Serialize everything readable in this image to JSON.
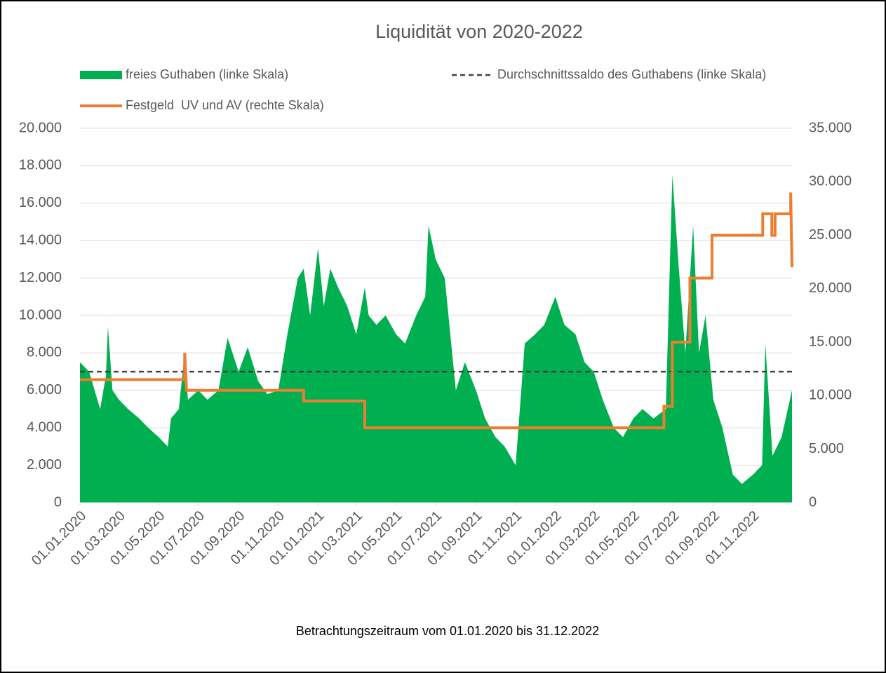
{
  "chart_data": {
    "type": "area-line",
    "title": "Liquidität von 2020-2022",
    "x_axis_label": "Betrachtungszeitraum vom 01.01.2020 bis 31.12.2022",
    "xlim": [
      "01.01.2020",
      "31.12.2022"
    ],
    "xticks": [
      "01.01.2020",
      "01.03.2020",
      "01.05.2020",
      "01.07.2020",
      "01.09.2020",
      "01.11.2020",
      "01.01.2021",
      "01.03.2021",
      "01.05.2021",
      "01.07.2021",
      "01.09.2021",
      "01.11.2021",
      "01.01.2022",
      "01.03.2022",
      "01.05.2022",
      "01.07.2022",
      "01.09.2022",
      "01.11.2022"
    ],
    "ylim": [
      0,
      20000
    ],
    "yticks": [
      0,
      {
        "value": 2000,
        "label": "2.000"
      },
      {
        "value": 4000,
        "label": "4.000"
      },
      {
        "value": 6000,
        "label": "6.000"
      },
      {
        "value": 8000,
        "label": "8.000"
      },
      {
        "value": 10000,
        "label": "10.000"
      },
      {
        "value": 12000,
        "label": "12.000"
      },
      {
        "value": 14000,
        "label": "14.000"
      },
      {
        "value": 16000,
        "label": "16.000"
      },
      {
        "value": 18000,
        "label": "18.000"
      },
      {
        "value": 20000,
        "label": "20.000"
      }
    ],
    "y2lim": [
      0,
      35000
    ],
    "y2ticks": [
      0,
      {
        "value": 5000,
        "label": "5.000"
      },
      {
        "value": 10000,
        "label": "10.000"
      },
      {
        "value": 15000,
        "label": "15.000"
      },
      {
        "value": 20000,
        "label": "20.000"
      },
      {
        "value": 25000,
        "label": "25.000"
      },
      {
        "value": 30000,
        "label": "30.000"
      },
      {
        "value": 35000,
        "label": "35.000"
      }
    ],
    "grid": true,
    "series": [
      {
        "name": "freies Guthaben (linke Skala)",
        "kind": "area",
        "color": "#00b050",
        "x": [
          "01.01.2020",
          "15.01.2020",
          "01.02.2020",
          "10.02.2020",
          "13.02.2020",
          "20.02.2020",
          "01.03.2020",
          "15.03.2020",
          "01.04.2020",
          "15.04.2020",
          "01.05.2020",
          "15.05.2020",
          "20.05.2020",
          "01.06.2020",
          "10.06.2020",
          "15.06.2020",
          "01.07.2020",
          "15.07.2020",
          "01.08.2020",
          "15.08.2020",
          "01.09.2020",
          "15.09.2020",
          "01.10.2020",
          "15.10.2020",
          "01.11.2020",
          "15.11.2020",
          "01.12.2020",
          "10.12.2020",
          "20.12.2020",
          "01.01.2021",
          "10.01.2021",
          "20.01.2021",
          "01.02.2021",
          "15.02.2021",
          "01.03.2021",
          "14.03.2021",
          "20.03.2021",
          "01.04.2021",
          "15.04.2021",
          "01.05.2021",
          "15.05.2021",
          "01.06.2021",
          "15.06.2021",
          "20.06.2021",
          "01.07.2021",
          "15.07.2021",
          "01.08.2021",
          "15.08.2021",
          "01.09.2021",
          "15.09.2021",
          "01.10.2021",
          "15.10.2021",
          "01.11.2021",
          "15.11.2021",
          "01.12.2021",
          "15.12.2021",
          "01.01.2022",
          "15.01.2022",
          "01.02.2022",
          "15.02.2022",
          "01.03.2022",
          "15.03.2022",
          "01.04.2022",
          "15.04.2022",
          "01.05.2022",
          "15.05.2022",
          "01.06.2022",
          "20.06.2022",
          "30.06.2022",
          "10.07.2022",
          "20.07.2022",
          "01.08.2022",
          "10.08.2022",
          "20.08.2022",
          "01.09.2022",
          "15.09.2022",
          "01.10.2022",
          "15.10.2022",
          "01.11.2022",
          "15.11.2022",
          "20.11.2022",
          "01.12.2022",
          "15.12.2022",
          "31.12.2022"
        ],
        "values": [
          7500,
          7000,
          5000,
          6800,
          9400,
          6000,
          5500,
          5000,
          4500,
          4000,
          3500,
          3000,
          4500,
          5000,
          8000,
          5500,
          6000,
          5500,
          6000,
          8800,
          7000,
          8300,
          6500,
          5800,
          6000,
          9000,
          12000,
          12500,
          10000,
          13600,
          10500,
          12500,
          11500,
          10500,
          9000,
          11500,
          10000,
          9500,
          10000,
          9000,
          8500,
          10000,
          11000,
          14800,
          13000,
          12000,
          6000,
          7500,
          6000,
          4500,
          3500,
          3000,
          2000,
          8500,
          9000,
          9500,
          11000,
          9500,
          9000,
          7500,
          7000,
          5500,
          4000,
          3500,
          4500,
          5000,
          4500,
          5000,
          17500,
          12500,
          8000,
          14800,
          8000,
          10000,
          5500,
          4000,
          1500,
          1000,
          1500,
          2000,
          8500,
          2500,
          3500,
          6000
        ]
      },
      {
        "name": "Durchschnittssaldo des Guthabens (linke Skala)",
        "kind": "dashed",
        "color": "#404040",
        "x": [
          "01.01.2020",
          "31.12.2022"
        ],
        "values": [
          7000,
          7000
        ]
      },
      {
        "name": "Festgeld  UV und AV (rechte Skala)",
        "kind": "line",
        "axis": "y2",
        "color": "#ed7d31",
        "x": [
          "01.01.2020",
          "10.06.2020",
          "10.06.2020",
          "13.06.2020",
          "13.06.2020",
          "10.12.2020",
          "10.12.2020",
          "14.03.2021",
          "14.03.2021",
          "17.06.2022",
          "17.06.2022",
          "30.06.2022",
          "30.06.2022",
          "27.07.2022",
          "27.07.2022",
          "30.08.2022",
          "30.08.2022",
          "16.11.2022",
          "16.11.2022",
          "30.11.2022",
          "30.11.2022",
          "05.12.2022",
          "05.12.2022",
          "29.12.2022",
          "29.12.2022",
          "31.12.2022"
        ],
        "values": [
          11500,
          11500,
          14000,
          10500,
          10500,
          10500,
          9500,
          9500,
          7000,
          7000,
          9000,
          9000,
          15000,
          15000,
          21000,
          21000,
          25000,
          25000,
          27000,
          27000,
          25000,
          25000,
          27000,
          27000,
          29000,
          22000
        ]
      }
    ]
  }
}
